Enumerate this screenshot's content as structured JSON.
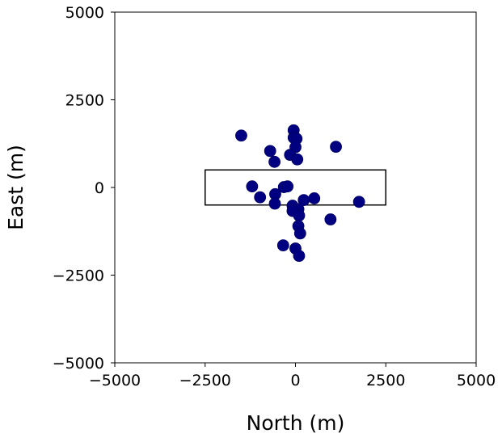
{
  "chart_data": {
    "type": "scatter",
    "xlabel": "North (m)",
    "ylabel": "East (m)",
    "xlim": [
      -5000,
      5000
    ],
    "ylim": [
      -5000,
      5000
    ],
    "xticks": [
      -5000,
      -2500,
      0,
      2500,
      5000
    ],
    "yticks": [
      -5000,
      -2500,
      0,
      2500,
      5000
    ],
    "xtick_labels": [
      "−5000",
      "−2500",
      "0",
      "2500",
      "5000"
    ],
    "ytick_labels": [
      "−5000",
      "−2500",
      "0",
      "2500",
      "5000"
    ],
    "grid": false,
    "marker_color": "#000080",
    "rectangle": {
      "x0": -2500,
      "y0": -500,
      "x1": 2500,
      "y1": 500
    },
    "points": [
      {
        "x": -1500,
        "y": 1480
      },
      {
        "x": -50,
        "y": 1630
      },
      {
        "x": -50,
        "y": 1420
      },
      {
        "x": 30,
        "y": 1390
      },
      {
        "x": 0,
        "y": 1150
      },
      {
        "x": 1120,
        "y": 1160
      },
      {
        "x": -700,
        "y": 1040
      },
      {
        "x": -150,
        "y": 930
      },
      {
        "x": 50,
        "y": 800
      },
      {
        "x": -580,
        "y": 730
      },
      {
        "x": -1200,
        "y": 30
      },
      {
        "x": -320,
        "y": 10
      },
      {
        "x": -220,
        "y": 30
      },
      {
        "x": -560,
        "y": -190
      },
      {
        "x": -980,
        "y": -280
      },
      {
        "x": -570,
        "y": -460
      },
      {
        "x": -80,
        "y": -520
      },
      {
        "x": 80,
        "y": -620
      },
      {
        "x": 230,
        "y": -360
      },
      {
        "x": 520,
        "y": -310
      },
      {
        "x": 1760,
        "y": -410
      },
      {
        "x": -80,
        "y": -670
      },
      {
        "x": 100,
        "y": -800
      },
      {
        "x": 970,
        "y": -910
      },
      {
        "x": 80,
        "y": -1100
      },
      {
        "x": 130,
        "y": -1310
      },
      {
        "x": -340,
        "y": -1650
      },
      {
        "x": 0,
        "y": -1740
      },
      {
        "x": 100,
        "y": -1950
      }
    ]
  }
}
